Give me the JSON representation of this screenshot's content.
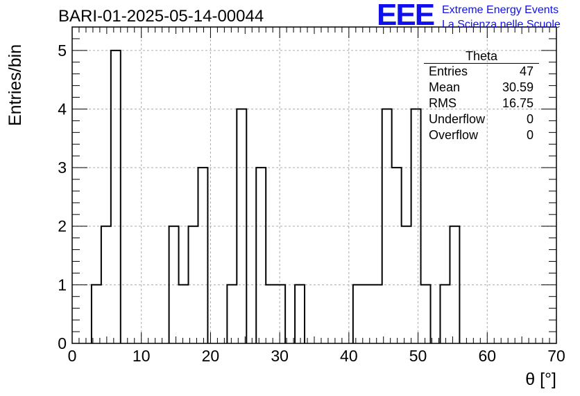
{
  "header": {
    "title": "BARI-01-2025-05-14-00044",
    "logo": "EEE",
    "logo_line1": "Extreme Energy Events",
    "logo_line2": "La Scienza nelle Scuole"
  },
  "stats": {
    "name": "Theta",
    "rows": [
      {
        "label": "Entries",
        "value": "47"
      },
      {
        "label": "Mean",
        "value": "30.59"
      },
      {
        "label": "RMS",
        "value": "16.75"
      },
      {
        "label": "Underflow",
        "value": "0"
      },
      {
        "label": "Overflow",
        "value": "0"
      }
    ]
  },
  "chart_data": {
    "type": "bar",
    "style": "step-histogram",
    "title": "BARI-01-2025-05-14-00044",
    "xlabel": "θ [°]",
    "ylabel": "Entries/bin",
    "xlim": [
      0,
      70
    ],
    "ylim": [
      0,
      5.4
    ],
    "grid": true,
    "legend": "top-right stats box",
    "x_ticks": [
      0,
      10,
      20,
      30,
      40,
      50,
      60,
      70
    ],
    "y_ticks": [
      0,
      1,
      2,
      3,
      4,
      5
    ],
    "bins": [
      {
        "x0": 2.8,
        "x1": 4.2,
        "value": 1
      },
      {
        "x0": 4.2,
        "x1": 5.6,
        "value": 2
      },
      {
        "x0": 5.6,
        "x1": 7.0,
        "value": 5
      },
      {
        "x0": 14.0,
        "x1": 15.4,
        "value": 2
      },
      {
        "x0": 15.4,
        "x1": 16.8,
        "value": 1
      },
      {
        "x0": 16.8,
        "x1": 18.2,
        "value": 2
      },
      {
        "x0": 18.2,
        "x1": 19.6,
        "value": 3
      },
      {
        "x0": 22.4,
        "x1": 23.8,
        "value": 1
      },
      {
        "x0": 23.8,
        "x1": 25.2,
        "value": 4
      },
      {
        "x0": 26.6,
        "x1": 28.0,
        "value": 3
      },
      {
        "x0": 28.0,
        "x1": 30.8,
        "value": 1
      },
      {
        "x0": 32.2,
        "x1": 33.6,
        "value": 1
      },
      {
        "x0": 40.6,
        "x1": 44.8,
        "value": 1
      },
      {
        "x0": 44.8,
        "x1": 46.2,
        "value": 4
      },
      {
        "x0": 46.2,
        "x1": 47.6,
        "value": 3
      },
      {
        "x0": 47.6,
        "x1": 49.0,
        "value": 2
      },
      {
        "x0": 49.0,
        "x1": 50.4,
        "value": 4
      },
      {
        "x0": 50.4,
        "x1": 51.8,
        "value": 1
      },
      {
        "x0": 53.2,
        "x1": 54.6,
        "value": 1
      },
      {
        "x0": 54.6,
        "x1": 56.0,
        "value": 2
      }
    ],
    "colors": {
      "line": "#000000",
      "grid": "#aaaaaa",
      "logo": "#1010ee"
    }
  }
}
